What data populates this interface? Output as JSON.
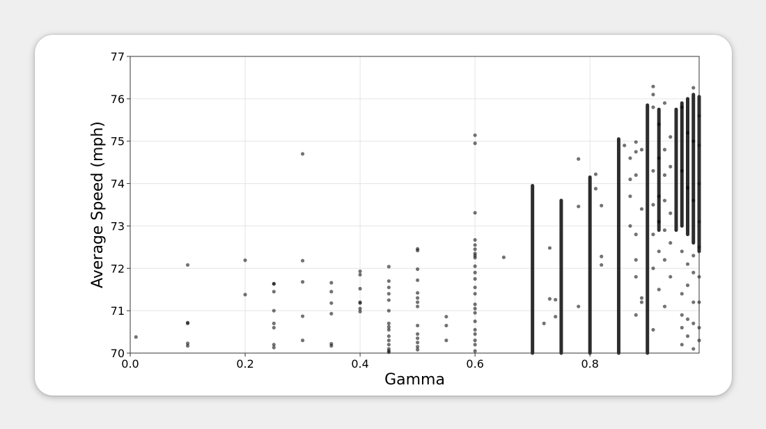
{
  "chart_data": {
    "type": "scatter",
    "title": "",
    "xlabel": "Gamma",
    "ylabel": "Average Speed (mph)",
    "xlim": [
      0.0,
      0.99
    ],
    "ylim": [
      70,
      77
    ],
    "xticks": [
      0.0,
      0.2,
      0.4,
      0.6,
      0.8
    ],
    "xtick_labels": [
      "0.0",
      "0.2",
      "0.4",
      "0.6",
      "0.8"
    ],
    "yticks": [
      70,
      71,
      72,
      73,
      74,
      75,
      76,
      77
    ],
    "ytick_labels": [
      "70",
      "71",
      "72",
      "73",
      "74",
      "75",
      "76",
      "77"
    ],
    "grid": true,
    "legend": "none",
    "point_color": "#000000",
    "point_opacity": 0.55,
    "points": [
      [
        0.01,
        70.38
      ],
      [
        0.1,
        72.08
      ],
      [
        0.1,
        70.72
      ],
      [
        0.1,
        70.7
      ],
      [
        0.1,
        70.23
      ],
      [
        0.1,
        70.17
      ],
      [
        0.2,
        72.19
      ],
      [
        0.2,
        71.38
      ],
      [
        0.25,
        71.64
      ],
      [
        0.25,
        71.63
      ],
      [
        0.25,
        71.45
      ],
      [
        0.25,
        71.0
      ],
      [
        0.25,
        70.7
      ],
      [
        0.25,
        70.6
      ],
      [
        0.25,
        70.2
      ],
      [
        0.25,
        70.13
      ],
      [
        0.3,
        74.7
      ],
      [
        0.3,
        72.18
      ],
      [
        0.3,
        71.68
      ],
      [
        0.3,
        70.87
      ],
      [
        0.3,
        70.3
      ],
      [
        0.35,
        71.66
      ],
      [
        0.35,
        71.45
      ],
      [
        0.35,
        71.18
      ],
      [
        0.35,
        70.93
      ],
      [
        0.35,
        70.22
      ],
      [
        0.35,
        70.17
      ],
      [
        0.4,
        71.93
      ],
      [
        0.4,
        71.85
      ],
      [
        0.4,
        71.52
      ],
      [
        0.4,
        71.2
      ],
      [
        0.4,
        71.18
      ],
      [
        0.4,
        71.05
      ],
      [
        0.4,
        70.98
      ],
      [
        0.45,
        72.04
      ],
      [
        0.45,
        71.7
      ],
      [
        0.45,
        71.55
      ],
      [
        0.45,
        71.4
      ],
      [
        0.45,
        71.25
      ],
      [
        0.45,
        71.0
      ],
      [
        0.45,
        70.7
      ],
      [
        0.45,
        70.62
      ],
      [
        0.45,
        70.55
      ],
      [
        0.45,
        70.4
      ],
      [
        0.45,
        70.3
      ],
      [
        0.45,
        70.2
      ],
      [
        0.45,
        70.1
      ],
      [
        0.45,
        70.05
      ],
      [
        0.45,
        70.02
      ],
      [
        0.5,
        72.46
      ],
      [
        0.5,
        72.42
      ],
      [
        0.5,
        71.98
      ],
      [
        0.5,
        71.72
      ],
      [
        0.5,
        71.42
      ],
      [
        0.5,
        71.3
      ],
      [
        0.5,
        71.2
      ],
      [
        0.5,
        71.1
      ],
      [
        0.5,
        70.65
      ],
      [
        0.5,
        70.45
      ],
      [
        0.5,
        70.35
      ],
      [
        0.5,
        70.25
      ],
      [
        0.5,
        70.15
      ],
      [
        0.5,
        70.08
      ],
      [
        0.55,
        70.86
      ],
      [
        0.55,
        70.65
      ],
      [
        0.55,
        70.3
      ],
      [
        0.6,
        75.14
      ],
      [
        0.6,
        74.95
      ],
      [
        0.6,
        73.31
      ],
      [
        0.6,
        72.67
      ],
      [
        0.6,
        72.55
      ],
      [
        0.6,
        72.45
      ],
      [
        0.6,
        72.35
      ],
      [
        0.6,
        72.3
      ],
      [
        0.6,
        72.25
      ],
      [
        0.6,
        72.05
      ],
      [
        0.6,
        71.9
      ],
      [
        0.6,
        71.75
      ],
      [
        0.6,
        71.55
      ],
      [
        0.6,
        71.4
      ],
      [
        0.6,
        71.15
      ],
      [
        0.6,
        71.05
      ],
      [
        0.6,
        70.95
      ],
      [
        0.6,
        70.75
      ],
      [
        0.6,
        70.55
      ],
      [
        0.6,
        70.45
      ],
      [
        0.6,
        70.3
      ],
      [
        0.6,
        70.2
      ],
      [
        0.6,
        70.05
      ],
      [
        0.65,
        72.26
      ],
      [
        0.72,
        70.7
      ],
      [
        0.73,
        72.48
      ],
      [
        0.73,
        71.28
      ],
      [
        0.74,
        71.26
      ],
      [
        0.74,
        70.86
      ],
      [
        0.78,
        74.58
      ],
      [
        0.78,
        73.46
      ],
      [
        0.78,
        71.1
      ],
      [
        0.81,
        74.22
      ],
      [
        0.81,
        73.88
      ],
      [
        0.82,
        72.28
      ],
      [
        0.82,
        72.08
      ],
      [
        0.82,
        73.48
      ],
      [
        0.86,
        74.9
      ],
      [
        0.87,
        74.6
      ],
      [
        0.87,
        74.1
      ],
      [
        0.87,
        73.7
      ],
      [
        0.87,
        73.0
      ],
      [
        0.88,
        74.98
      ],
      [
        0.88,
        74.75
      ],
      [
        0.88,
        74.2
      ],
      [
        0.88,
        72.8
      ],
      [
        0.88,
        72.2
      ],
      [
        0.88,
        71.8
      ],
      [
        0.89,
        74.8
      ],
      [
        0.89,
        73.4
      ],
      [
        0.89,
        71.3
      ],
      [
        0.89,
        71.2
      ],
      [
        0.88,
        70.9
      ],
      [
        0.91,
        76.29
      ],
      [
        0.91,
        76.1
      ],
      [
        0.91,
        75.8
      ],
      [
        0.91,
        74.3
      ],
      [
        0.91,
        73.5
      ],
      [
        0.91,
        72.8
      ],
      [
        0.91,
        72.0
      ],
      [
        0.91,
        70.55
      ],
      [
        0.92,
        75.4
      ],
      [
        0.92,
        74.6
      ],
      [
        0.92,
        73.7
      ],
      [
        0.92,
        73.1
      ],
      [
        0.92,
        72.4
      ],
      [
        0.92,
        71.5
      ],
      [
        0.93,
        75.9
      ],
      [
        0.93,
        74.8
      ],
      [
        0.93,
        74.2
      ],
      [
        0.93,
        73.6
      ],
      [
        0.93,
        72.9
      ],
      [
        0.93,
        72.2
      ],
      [
        0.93,
        71.1
      ],
      [
        0.94,
        75.1
      ],
      [
        0.94,
        74.4
      ],
      [
        0.94,
        73.3
      ],
      [
        0.94,
        72.6
      ],
      [
        0.94,
        71.8
      ],
      [
        0.96,
        75.8
      ],
      [
        0.96,
        74.3
      ],
      [
        0.96,
        72.4
      ],
      [
        0.96,
        71.4
      ],
      [
        0.96,
        70.9
      ],
      [
        0.96,
        70.6
      ],
      [
        0.96,
        70.2
      ],
      [
        0.97,
        75.2
      ],
      [
        0.97,
        73.9
      ],
      [
        0.97,
        72.1
      ],
      [
        0.97,
        71.6
      ],
      [
        0.97,
        70.8
      ],
      [
        0.97,
        70.4
      ],
      [
        0.98,
        76.26
      ],
      [
        0.98,
        75.0
      ],
      [
        0.98,
        73.6
      ],
      [
        0.98,
        72.3
      ],
      [
        0.98,
        71.9
      ],
      [
        0.98,
        71.2
      ],
      [
        0.98,
        70.7
      ],
      [
        0.98,
        70.1
      ],
      [
        0.99,
        75.6
      ],
      [
        0.99,
        74.9
      ],
      [
        0.99,
        74.0
      ],
      [
        0.99,
        73.1
      ],
      [
        0.99,
        72.5
      ],
      [
        0.99,
        71.8
      ],
      [
        0.99,
        71.2
      ],
      [
        0.99,
        70.6
      ],
      [
        0.99,
        70.3
      ]
    ],
    "dense_columns": [
      {
        "x": 0.7,
        "y_min": 70.0,
        "y_max": 73.95
      },
      {
        "x": 0.75,
        "y_min": 70.0,
        "y_max": 73.6
      },
      {
        "x": 0.8,
        "y_min": 70.0,
        "y_max": 74.15
      },
      {
        "x": 0.85,
        "y_min": 70.0,
        "y_max": 75.05
      },
      {
        "x": 0.9,
        "y_min": 70.0,
        "y_max": 75.85
      },
      {
        "x": 0.92,
        "y_min": 72.9,
        "y_max": 75.75
      },
      {
        "x": 0.95,
        "y_min": 72.9,
        "y_max": 75.75
      },
      {
        "x": 0.96,
        "y_min": 73.0,
        "y_max": 75.9
      },
      {
        "x": 0.97,
        "y_min": 72.8,
        "y_max": 76.0
      },
      {
        "x": 0.98,
        "y_min": 72.6,
        "y_max": 76.1
      },
      {
        "x": 0.99,
        "y_min": 72.4,
        "y_max": 76.05
      }
    ]
  }
}
